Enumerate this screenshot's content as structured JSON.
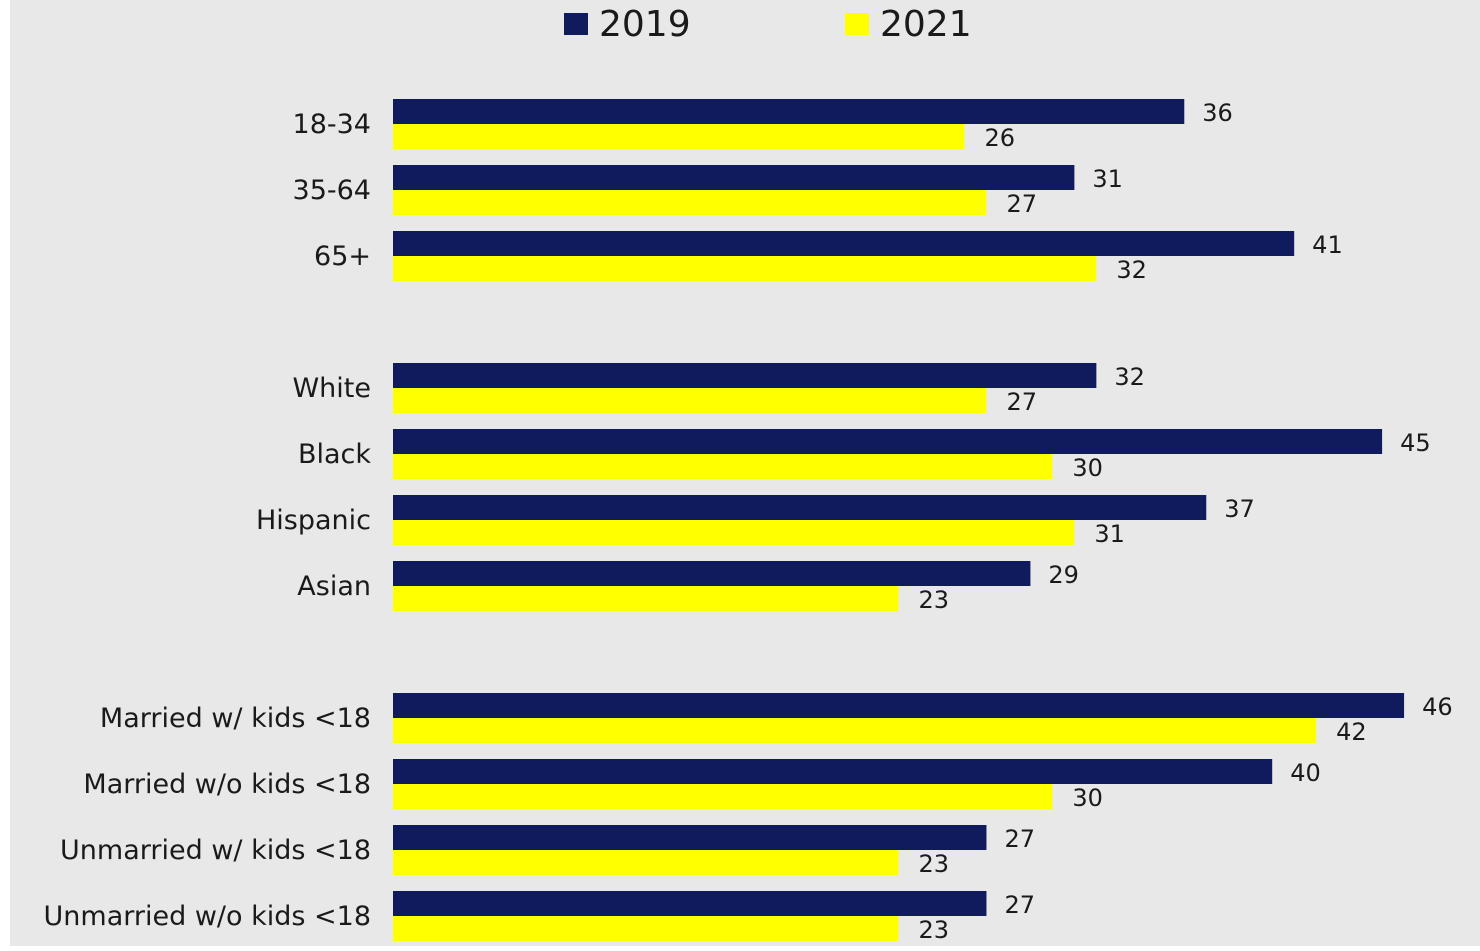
{
  "chart_data": {
    "type": "bar",
    "orientation": "horizontal",
    "legend_position": "top",
    "grid": false,
    "xlim": [
      0,
      46
    ],
    "categories": [
      "18-34",
      "35-64",
      "65+",
      "White",
      "Black",
      "Hispanic",
      "Asian",
      "Married w/ kids <18",
      "Married w/o kids <18",
      "Unmarried w/ kids <18",
      "Unmarried w/o kids <18"
    ],
    "groups": [
      [
        "18-34",
        "35-64",
        "65+"
      ],
      [
        "White",
        "Black",
        "Hispanic",
        "Asian"
      ],
      [
        "Married w/ kids <18",
        "Married w/o kids <18",
        "Unmarried w/ kids <18",
        "Unmarried w/o kids <18"
      ]
    ],
    "series": [
      {
        "name": "2019",
        "color": "#0f1b5c",
        "values": [
          36,
          31,
          41,
          32,
          45,
          37,
          29,
          46,
          40,
          27,
          27
        ]
      },
      {
        "name": "2021",
        "color": "#ffff00",
        "values": [
          26,
          27,
          32,
          27,
          30,
          31,
          23,
          42,
          30,
          23,
          23
        ]
      }
    ]
  },
  "colors": {
    "plot_background": "#e8e8e8"
  }
}
